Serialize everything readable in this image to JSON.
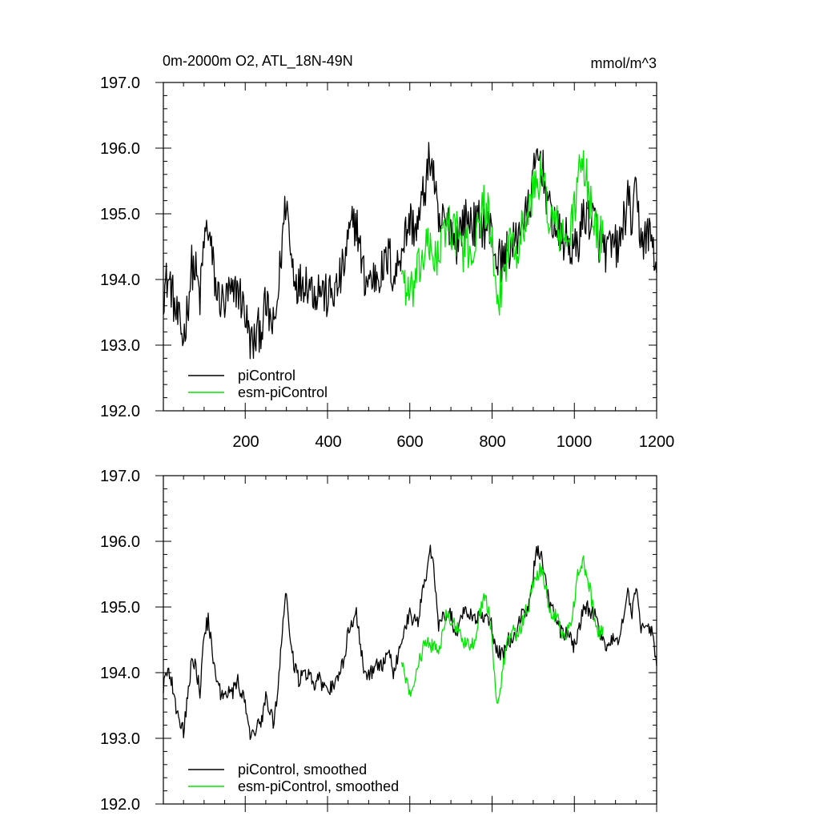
{
  "colors": {
    "piControl": "#000000",
    "esm_piControl": "#00e600",
    "axis": "#000000",
    "background": "#ffffff"
  },
  "chart_data": [
    {
      "type": "line",
      "title": "0m-2000m O2, ATL_18N-49N",
      "units": "mmol/m^3",
      "xlim": [
        1,
        1200
      ],
      "ylim": [
        192,
        197
      ],
      "xticks": [
        200,
        400,
        600,
        800,
        1000,
        1200
      ],
      "xtick_labels": [
        "200",
        "400",
        "600",
        "800",
        "1000",
        "1200"
      ],
      "yticks": [
        192,
        193,
        194,
        195,
        196,
        197
      ],
      "ytick_labels": [
        "192.0",
        "193.0",
        "194.0",
        "195.0",
        "196.0",
        "197.0"
      ],
      "grid": false,
      "legend_position": "bottom-left",
      "legend": [
        "piControl",
        "esm-piControl"
      ],
      "series": [
        {
          "name": "piControl",
          "color": "#000000",
          "noise": 0.35,
          "x": [
            1,
            10,
            20,
            30,
            40,
            50,
            60,
            70,
            80,
            90,
            100,
            110,
            120,
            130,
            140,
            150,
            160,
            170,
            180,
            190,
            200,
            210,
            220,
            230,
            240,
            250,
            260,
            270,
            280,
            290,
            300,
            310,
            320,
            330,
            340,
            350,
            360,
            370,
            380,
            390,
            400,
            410,
            420,
            430,
            440,
            450,
            460,
            470,
            480,
            490,
            500,
            510,
            520,
            530,
            540,
            550,
            560,
            570,
            580,
            590,
            600,
            610,
            620,
            630,
            640,
            650,
            660,
            670,
            680,
            690,
            700,
            710,
            720,
            730,
            740,
            750,
            760,
            770,
            780,
            790,
            800,
            810,
            820,
            830,
            840,
            850,
            860,
            870,
            880,
            890,
            900,
            910,
            920,
            930,
            940,
            950,
            960,
            970,
            980,
            990,
            1000,
            1010,
            1020,
            1030,
            1040,
            1050,
            1060,
            1070,
            1080,
            1090,
            1100,
            1110,
            1120,
            1130,
            1140,
            1150,
            1160,
            1170,
            1180,
            1190,
            1200
          ],
          "y": [
            193.8,
            194.0,
            193.9,
            193.5,
            193.3,
            193.1,
            193.6,
            194.2,
            194.1,
            193.7,
            194.6,
            194.8,
            194.3,
            193.8,
            193.7,
            193.6,
            193.8,
            193.7,
            193.9,
            193.7,
            193.5,
            193.1,
            193.0,
            193.2,
            193.3,
            193.6,
            193.4,
            193.2,
            193.8,
            194.6,
            195.3,
            194.4,
            194.1,
            193.9,
            194.0,
            194.0,
            193.9,
            193.8,
            193.9,
            193.8,
            193.7,
            193.8,
            193.8,
            194.0,
            194.2,
            194.6,
            194.8,
            194.9,
            194.4,
            194.0,
            194.0,
            194.0,
            194.1,
            194.1,
            194.2,
            194.4,
            194.0,
            194.2,
            194.5,
            194.7,
            194.9,
            194.8,
            194.8,
            195.2,
            195.5,
            195.9,
            195.5,
            194.7,
            194.9,
            194.8,
            194.9,
            194.5,
            194.7,
            194.9,
            194.9,
            194.9,
            194.8,
            194.9,
            194.8,
            194.8,
            194.7,
            194.3,
            194.3,
            194.3,
            194.5,
            194.5,
            194.6,
            194.9,
            194.9,
            195.1,
            195.5,
            195.9,
            195.8,
            195.4,
            195.0,
            194.9,
            194.7,
            194.6,
            194.6,
            194.5,
            194.4,
            194.6,
            194.9,
            195.0,
            194.9,
            194.9,
            194.6,
            194.5,
            194.4,
            194.5,
            194.5,
            194.5,
            194.9,
            195.2,
            194.9,
            195.3,
            194.7,
            194.6,
            194.7,
            194.6,
            194.1
          ]
        },
        {
          "name": "esm-piControl",
          "color": "#00e600",
          "noise": 0.35,
          "x": [
            580,
            590,
            600,
            610,
            620,
            630,
            640,
            650,
            660,
            670,
            680,
            690,
            700,
            710,
            720,
            730,
            740,
            750,
            760,
            770,
            780,
            790,
            800,
            810,
            820,
            830,
            840,
            850,
            860,
            870,
            880,
            890,
            900,
            910,
            920,
            930,
            940,
            950,
            960,
            970,
            980,
            990,
            1000,
            1010,
            1020,
            1030,
            1040,
            1050,
            1060,
            1070
          ],
          "y": [
            194.2,
            193.9,
            193.7,
            193.9,
            194.1,
            194.3,
            194.5,
            194.4,
            194.4,
            194.3,
            194.6,
            194.9,
            194.8,
            194.7,
            194.7,
            194.4,
            194.5,
            194.4,
            194.6,
            194.9,
            195.2,
            195.0,
            194.5,
            193.5,
            193.8,
            194.2,
            194.5,
            194.7,
            194.5,
            194.7,
            194.9,
            195.0,
            195.4,
            195.5,
            195.6,
            195.3,
            194.9,
            194.9,
            194.8,
            194.6,
            194.6,
            194.7,
            195.1,
            195.6,
            195.7,
            195.5,
            195.2,
            194.8,
            194.6,
            194.7
          ]
        }
      ]
    },
    {
      "type": "line",
      "xlim": [
        1,
        1200
      ],
      "ylim": [
        192,
        197
      ],
      "xticks": [
        200,
        400,
        600,
        800,
        1000,
        1200
      ],
      "yticks": [
        192,
        193,
        194,
        195,
        196,
        197
      ],
      "ytick_labels": [
        "192.0",
        "193.0",
        "194.0",
        "195.0",
        "196.0",
        "197.0"
      ],
      "grid": false,
      "legend_position": "bottom-left",
      "legend": [
        "piControl, smoothed",
        "esm-piControl, smoothed"
      ],
      "series": [
        {
          "name": "piControl, smoothed",
          "color": "#000000",
          "noise": 0.12,
          "x": [
            1,
            10,
            20,
            30,
            40,
            50,
            60,
            70,
            80,
            90,
            100,
            110,
            120,
            130,
            140,
            150,
            160,
            170,
            180,
            190,
            200,
            210,
            220,
            230,
            240,
            250,
            260,
            270,
            280,
            290,
            300,
            310,
            320,
            330,
            340,
            350,
            360,
            370,
            380,
            390,
            400,
            410,
            420,
            430,
            440,
            450,
            460,
            470,
            480,
            490,
            500,
            510,
            520,
            530,
            540,
            550,
            560,
            570,
            580,
            590,
            600,
            610,
            620,
            630,
            640,
            650,
            660,
            670,
            680,
            690,
            700,
            710,
            720,
            730,
            740,
            750,
            760,
            770,
            780,
            790,
            800,
            810,
            820,
            830,
            840,
            850,
            860,
            870,
            880,
            890,
            900,
            910,
            920,
            930,
            940,
            950,
            960,
            970,
            980,
            990,
            1000,
            1010,
            1020,
            1030,
            1040,
            1050,
            1060,
            1070,
            1080,
            1090,
            1100,
            1110,
            1120,
            1130,
            1140,
            1150,
            1160,
            1170,
            1180,
            1190,
            1200
          ],
          "y": [
            193.8,
            194.0,
            193.9,
            193.5,
            193.3,
            193.1,
            193.6,
            194.2,
            194.1,
            193.7,
            194.6,
            194.8,
            194.3,
            193.8,
            193.7,
            193.6,
            193.8,
            193.7,
            193.9,
            193.7,
            193.5,
            193.1,
            193.0,
            193.2,
            193.3,
            193.6,
            193.4,
            193.2,
            193.8,
            194.6,
            195.3,
            194.4,
            194.1,
            193.9,
            194.0,
            194.0,
            193.9,
            193.8,
            193.9,
            193.8,
            193.7,
            193.8,
            193.8,
            194.0,
            194.2,
            194.6,
            194.8,
            194.9,
            194.4,
            194.0,
            194.0,
            194.0,
            194.1,
            194.1,
            194.2,
            194.4,
            194.0,
            194.2,
            194.5,
            194.7,
            194.9,
            194.8,
            194.8,
            195.2,
            195.5,
            195.9,
            195.5,
            194.7,
            194.9,
            194.8,
            194.9,
            194.5,
            194.7,
            194.9,
            194.9,
            194.9,
            194.8,
            194.9,
            194.8,
            194.8,
            194.7,
            194.3,
            194.3,
            194.3,
            194.5,
            194.5,
            194.6,
            194.9,
            194.9,
            195.1,
            195.5,
            195.9,
            195.8,
            195.4,
            195.0,
            194.9,
            194.7,
            194.6,
            194.6,
            194.5,
            194.4,
            194.6,
            194.9,
            195.0,
            194.9,
            194.9,
            194.6,
            194.5,
            194.4,
            194.5,
            194.5,
            194.5,
            194.9,
            195.2,
            194.9,
            195.3,
            194.7,
            194.6,
            194.7,
            194.6,
            194.1
          ]
        },
        {
          "name": "esm-piControl, smoothed",
          "color": "#00e600",
          "noise": 0.12,
          "x": [
            580,
            590,
            600,
            610,
            620,
            630,
            640,
            650,
            660,
            670,
            680,
            690,
            700,
            710,
            720,
            730,
            740,
            750,
            760,
            770,
            780,
            790,
            800,
            810,
            820,
            830,
            840,
            850,
            860,
            870,
            880,
            890,
            900,
            910,
            920,
            930,
            940,
            950,
            960,
            970,
            980,
            990,
            1000,
            1010,
            1020,
            1030,
            1040,
            1050,
            1060,
            1070
          ],
          "y": [
            194.2,
            193.9,
            193.7,
            193.9,
            194.1,
            194.3,
            194.5,
            194.4,
            194.4,
            194.3,
            194.6,
            194.9,
            194.8,
            194.7,
            194.7,
            194.4,
            194.5,
            194.4,
            194.6,
            194.9,
            195.2,
            195.0,
            194.5,
            193.5,
            193.8,
            194.2,
            194.5,
            194.7,
            194.5,
            194.7,
            194.9,
            195.0,
            195.4,
            195.5,
            195.6,
            195.3,
            194.9,
            194.9,
            194.8,
            194.6,
            194.6,
            194.7,
            195.1,
            195.6,
            195.7,
            195.5,
            195.2,
            194.8,
            194.6,
            194.7
          ]
        }
      ]
    }
  ]
}
